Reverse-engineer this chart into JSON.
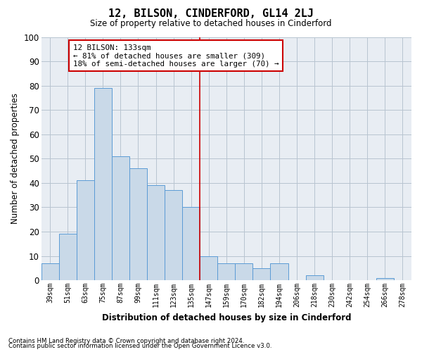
{
  "title": "12, BILSON, CINDERFORD, GL14 2LJ",
  "subtitle": "Size of property relative to detached houses in Cinderford",
  "xlabel": "Distribution of detached houses by size in Cinderford",
  "ylabel": "Number of detached properties",
  "categories": [
    "39sqm",
    "51sqm",
    "63sqm",
    "75sqm",
    "87sqm",
    "99sqm",
    "111sqm",
    "123sqm",
    "135sqm",
    "147sqm",
    "159sqm",
    "170sqm",
    "182sqm",
    "194sqm",
    "206sqm",
    "218sqm",
    "230sqm",
    "242sqm",
    "254sqm",
    "266sqm",
    "278sqm"
  ],
  "values": [
    7,
    19,
    41,
    79,
    51,
    46,
    39,
    37,
    30,
    10,
    7,
    7,
    5,
    7,
    0,
    2,
    0,
    0,
    0,
    1,
    0
  ],
  "bar_color": "#c9d9e8",
  "bar_edge_color": "#5b9bd5",
  "grid_color": "#b8c4d0",
  "background_color": "#e8edf3",
  "vline_color": "#cc0000",
  "annotation_text": "12 BILSON: 133sqm\n← 81% of detached houses are smaller (309)\n18% of semi-detached houses are larger (70) →",
  "annotation_box_color": "#cc0000",
  "ylim": [
    0,
    100
  ],
  "footnote1": "Contains HM Land Registry data © Crown copyright and database right 2024.",
  "footnote2": "Contains public sector information licensed under the Open Government Licence v3.0."
}
